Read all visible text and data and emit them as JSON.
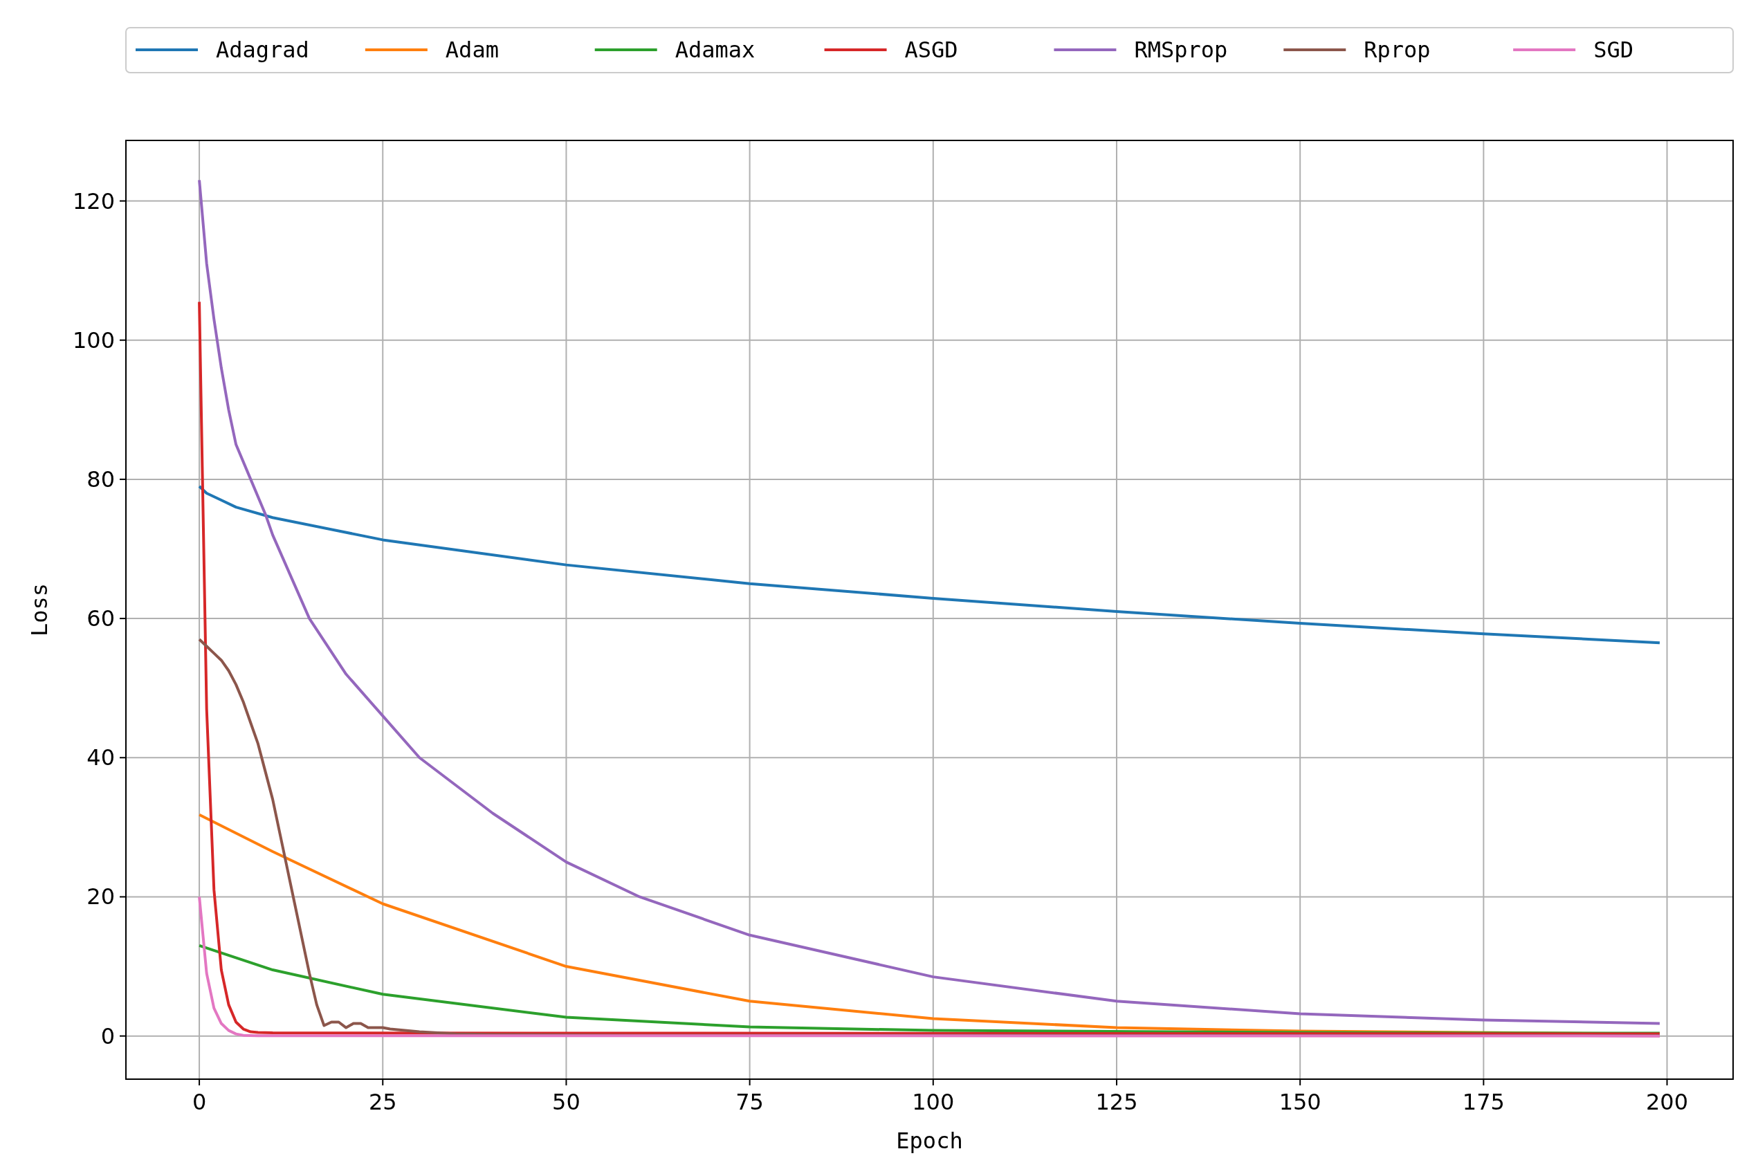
{
  "chart_data": {
    "type": "line",
    "xlabel": "Epoch",
    "ylabel": "Loss",
    "xlim": [
      -10,
      209
    ],
    "ylim": [
      -6.2,
      128.7
    ],
    "xticks": [
      0,
      25,
      50,
      75,
      100,
      125,
      150,
      175,
      200
    ],
    "yticks": [
      0,
      20,
      40,
      60,
      80,
      100,
      120
    ],
    "grid": true,
    "legend": "top",
    "series": [
      {
        "name": "Adagrad",
        "color": "#1f77b4",
        "x": [
          0,
          1,
          3,
          5,
          10,
          25,
          50,
          75,
          100,
          125,
          150,
          175,
          199
        ],
        "values": [
          79,
          78,
          77,
          76,
          74.5,
          71.3,
          67.7,
          65,
          62.9,
          61,
          59.3,
          57.8,
          56.5
        ]
      },
      {
        "name": "Adam",
        "color": "#ff7f0e",
        "x": [
          0,
          10,
          25,
          50,
          75,
          100,
          125,
          150,
          199
        ],
        "values": [
          31.8,
          26.5,
          19,
          10,
          5,
          2.5,
          1.2,
          0.7,
          0.3
        ]
      },
      {
        "name": "Adamax",
        "color": "#2ca02c",
        "x": [
          0,
          10,
          25,
          50,
          75,
          100,
          150,
          199
        ],
        "values": [
          13,
          9.5,
          6,
          2.7,
          1.3,
          0.8,
          0.5,
          0.4
        ]
      },
      {
        "name": "ASGD",
        "color": "#d62728",
        "x": [
          0,
          1,
          2,
          3,
          4,
          5,
          6,
          7,
          8,
          10,
          199
        ],
        "values": [
          105.5,
          47,
          21,
          9.5,
          4.5,
          2,
          1,
          0.6,
          0.5,
          0.45,
          0.3
        ]
      },
      {
        "name": "RMSprop",
        "color": "#9467bd",
        "x": [
          0,
          1,
          2,
          3,
          4,
          5,
          7,
          9,
          10,
          15,
          20,
          25,
          30,
          40,
          50,
          60,
          75,
          100,
          125,
          150,
          175,
          199
        ],
        "values": [
          123,
          111,
          103,
          96,
          90,
          85,
          80,
          75,
          72,
          60,
          52,
          46,
          40,
          32,
          25,
          20,
          14.5,
          8.5,
          5,
          3.2,
          2.3,
          1.8
        ]
      },
      {
        "name": "Rprop",
        "color": "#8c564b",
        "x": [
          0,
          1,
          2,
          3,
          4,
          5,
          6,
          7,
          8,
          9,
          10,
          11,
          12,
          13,
          14,
          15,
          16,
          17,
          18,
          19,
          20,
          21,
          22,
          23,
          24,
          25,
          26,
          28,
          30,
          35,
          40,
          60,
          199
        ],
        "values": [
          57,
          56,
          55,
          54,
          52.5,
          50.5,
          48,
          45,
          42,
          38,
          34,
          29,
          24,
          19,
          14,
          9,
          4.5,
          1.5,
          2,
          2,
          1.2,
          1.8,
          1.8,
          1.2,
          1.2,
          1.2,
          1,
          0.8,
          0.6,
          0.3,
          0.2,
          0.1,
          0.05
        ]
      },
      {
        "name": "SGD",
        "color": "#e377c2",
        "x": [
          0,
          1,
          2,
          3,
          4,
          5,
          6,
          8,
          199
        ],
        "values": [
          20,
          9,
          4,
          1.8,
          0.8,
          0.3,
          0.1,
          0.05,
          0
        ]
      }
    ]
  }
}
